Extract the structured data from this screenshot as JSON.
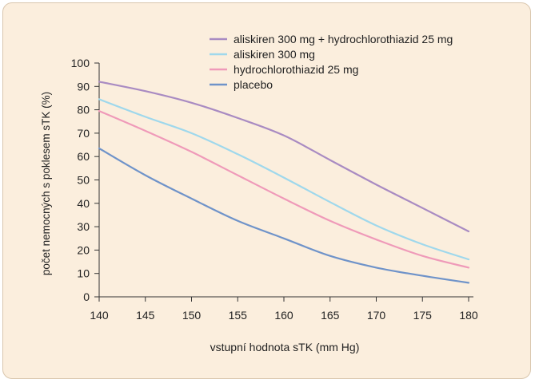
{
  "chart_data": {
    "type": "line",
    "xlabel": "vstupní hodnota sTK (mm Hg)",
    "ylabel": "počet nemocných s poklesem sTK (%)",
    "xlim": [
      140,
      180
    ],
    "ylim": [
      0,
      100
    ],
    "xticks": [
      140,
      145,
      150,
      155,
      160,
      165,
      170,
      175,
      180
    ],
    "yticks": [
      0,
      10,
      20,
      30,
      40,
      50,
      60,
      70,
      80,
      90,
      100
    ],
    "grid": false,
    "legend_position": "top-right",
    "x": [
      140,
      145,
      150,
      155,
      160,
      165,
      170,
      175,
      180
    ],
    "series": [
      {
        "name": "aliskiren 300 mg + hydrochlorothiazid 25 mg",
        "color": "#a98bc2",
        "values": [
          92,
          88,
          83,
          76.5,
          69,
          58.5,
          48,
          38,
          28
        ]
      },
      {
        "name": "aliskiren 300 mg",
        "color": "#9fd8ec",
        "values": [
          84.5,
          77,
          70,
          61,
          51,
          40.5,
          30.5,
          22.5,
          16
        ]
      },
      {
        "name": "hydrochlorothiazid 25 mg",
        "color": "#ef9ab9",
        "values": [
          79.5,
          71,
          62,
          52,
          42,
          32.5,
          24.5,
          17.5,
          12.5
        ]
      },
      {
        "name": "placebo",
        "color": "#6f93c9",
        "values": [
          63.5,
          52,
          42,
          32.5,
          25,
          17.5,
          12.5,
          9,
          6
        ]
      }
    ]
  }
}
